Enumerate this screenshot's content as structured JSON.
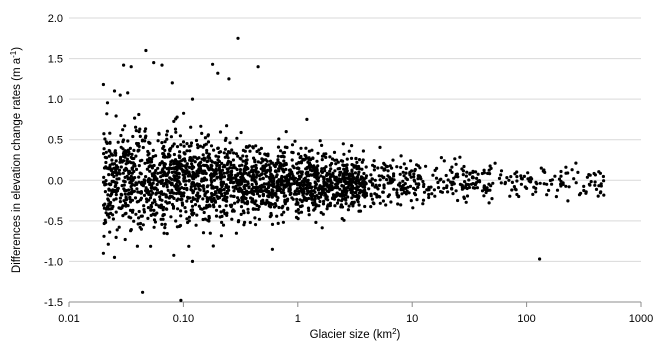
{
  "chart_data": {
    "type": "scatter",
    "title": "",
    "xlabel": {
      "main": "Glacier size (km",
      "sup": "2",
      "end": ")"
    },
    "ylabel": {
      "main": "Differences in elevation change rates (m a",
      "sup": "-1",
      "end": ")"
    },
    "x_scale": "log",
    "xlim": [
      0.01,
      1000
    ],
    "ylim": [
      -1.5,
      2.0
    ],
    "x_ticks": [
      0.01,
      0.1,
      1,
      10,
      100,
      1000
    ],
    "x_tick_labels": [
      "0.01",
      "0.10",
      "1",
      "10",
      "100",
      "1000"
    ],
    "y_ticks": [
      -1.5,
      -1.0,
      -0.5,
      0.0,
      0.5,
      1.0,
      1.5,
      2.0
    ],
    "y_tick_labels": [
      "-1.5",
      "-1.0",
      "-0.5",
      "0.0",
      "0.5",
      "1.0",
      "1.5",
      "2.0"
    ],
    "grid": "horizontal",
    "marker_color": "#000000",
    "notable_points": [
      [
        0.02,
        1.18
      ],
      [
        0.025,
        1.1
      ],
      [
        0.028,
        1.05
      ],
      [
        0.03,
        1.42
      ],
      [
        0.035,
        1.4
      ],
      [
        0.047,
        1.6
      ],
      [
        0.055,
        1.45
      ],
      [
        0.065,
        1.42
      ],
      [
        0.08,
        1.2
      ],
      [
        0.12,
        1.0
      ],
      [
        0.18,
        1.43
      ],
      [
        0.2,
        1.32
      ],
      [
        0.25,
        1.25
      ],
      [
        0.3,
        1.75
      ],
      [
        0.45,
        1.4
      ],
      [
        1.2,
        0.75
      ],
      [
        2.5,
        0.45
      ],
      [
        8,
        0.3
      ],
      [
        18,
        0.28
      ],
      [
        30,
        0.1
      ],
      [
        70,
        0.0
      ],
      [
        100,
        -0.1
      ],
      [
        120,
        -0.1
      ],
      [
        130,
        -0.97
      ],
      [
        150,
        -0.05
      ],
      [
        200,
        0.05
      ],
      [
        250,
        0.13
      ],
      [
        350,
        0.07
      ],
      [
        450,
        -0.07
      ],
      [
        0.044,
        -1.38
      ],
      [
        0.095,
        -1.48
      ],
      [
        0.02,
        -0.9
      ],
      [
        0.025,
        -0.95
      ],
      [
        0.12,
        -1.0
      ],
      [
        0.6,
        -0.85
      ]
    ]
  }
}
